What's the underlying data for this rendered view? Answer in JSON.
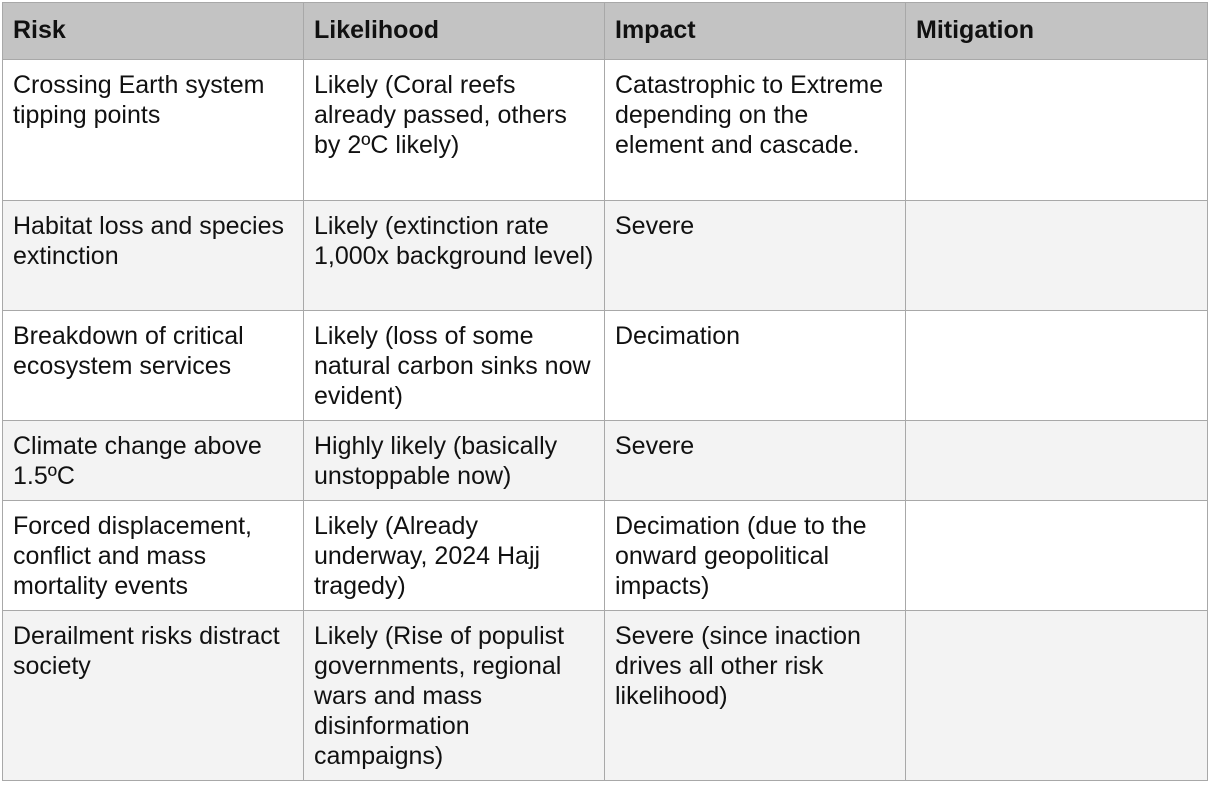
{
  "table": {
    "headers": [
      "Risk",
      "Likelihood",
      "Impact",
      "Mitigation"
    ],
    "rows": [
      {
        "risk": "Crossing Earth system tipping points",
        "likelihood": "Likely (Coral reefs already passed, others by 2ºC likely)",
        "impact": "Catastrophic to Extreme depending on the element and cascade.",
        "mitigation": ""
      },
      {
        "risk": "Habitat loss and species extinction",
        "likelihood": "Likely (extinction rate 1,000x background level)",
        "impact": "Severe",
        "mitigation": ""
      },
      {
        "risk": "Breakdown of critical ecosystem services",
        "likelihood": "Likely (loss of some natural carbon sinks now evident)",
        "impact": "Decimation",
        "mitigation": ""
      },
      {
        "risk": "Climate change above 1.5ºC",
        "likelihood": "Highly likely (basically unstoppable now)",
        "impact": "Severe",
        "mitigation": ""
      },
      {
        "risk": "Forced displacement, conflict and mass mortality events",
        "likelihood": "Likely (Already underway, 2024 Hajj tragedy)",
        "impact": "Decimation (due to the onward geopolitical impacts)",
        "mitigation": ""
      },
      {
        "risk": "Derailment risks distract society",
        "likelihood": "Likely (Rise of populist governments, regional wars and mass disinformation campaigns)",
        "impact": "Severe (since inaction drives all other risk likelihood)",
        "mitigation": ""
      }
    ]
  }
}
